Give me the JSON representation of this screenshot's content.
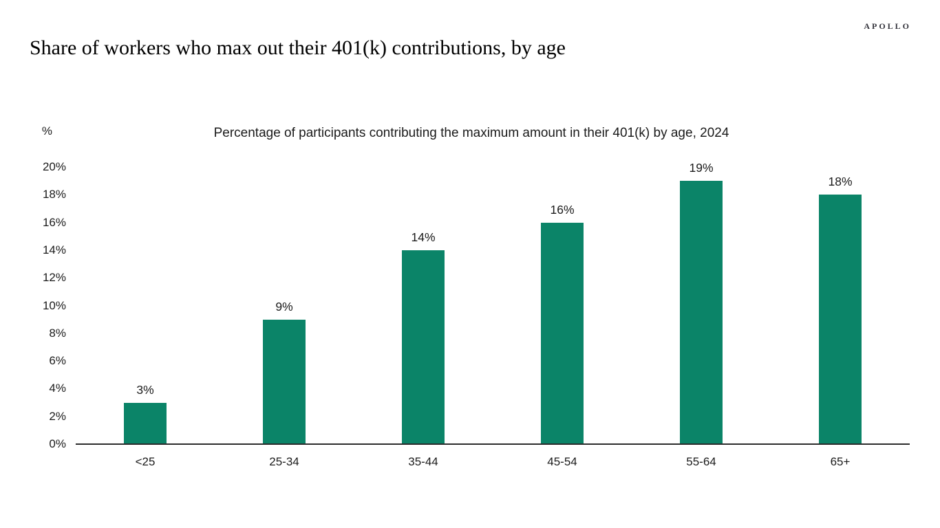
{
  "brand": {
    "logo": "APOLLO"
  },
  "page_title": "Share of workers who max out their 401(k) contributions, by age",
  "chart_data": {
    "type": "bar",
    "title": "Percentage of participants contributing the maximum amount in their 401(k) by age, 2024",
    "unit_label": "%",
    "categories": [
      "<25",
      "25-34",
      "35-44",
      "45-54",
      "55-64",
      "65+"
    ],
    "values": [
      3,
      9,
      14,
      16,
      19,
      18
    ],
    "data_labels": [
      "3%",
      "9%",
      "14%",
      "16%",
      "19%",
      "18%"
    ],
    "y_ticks": [
      {
        "value": 0,
        "label": "0%"
      },
      {
        "value": 2,
        "label": "2%"
      },
      {
        "value": 4,
        "label": "4%"
      },
      {
        "value": 6,
        "label": "6%"
      },
      {
        "value": 8,
        "label": "8%"
      },
      {
        "value": 10,
        "label": "10%"
      },
      {
        "value": 12,
        "label": "12%"
      },
      {
        "value": 14,
        "label": "14%"
      },
      {
        "value": 16,
        "label": "16%"
      },
      {
        "value": 18,
        "label": "18%"
      },
      {
        "value": 20,
        "label": "20%"
      }
    ],
    "ylim": [
      0,
      20
    ],
    "bar_color": "#0B8468",
    "axis_color": "#2b2b2b",
    "grid": false,
    "legend": false
  }
}
